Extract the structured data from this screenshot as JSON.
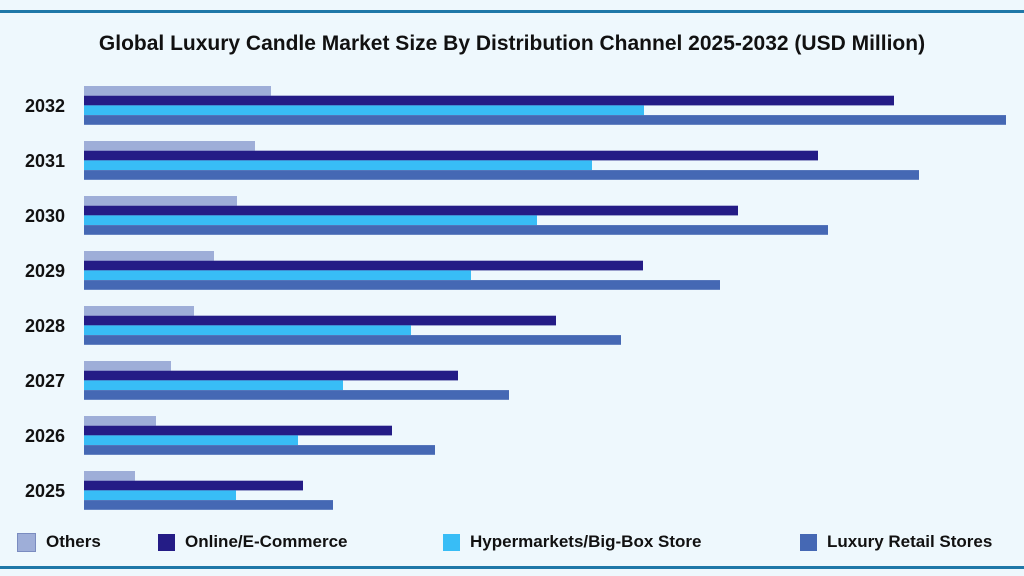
{
  "chart_data": {
    "type": "bar",
    "orientation": "horizontal",
    "title": "Global Luxury Candle Market Size By Distribution Channel 2025-2032 (USD Million)",
    "categories": [
      "2032",
      "2031",
      "2030",
      "2029",
      "2028",
      "2027",
      "2026",
      "2025"
    ],
    "series": [
      {
        "name": "Others",
        "color": "#9eaed8",
        "values": [
          187,
          171,
          153,
          130,
          110,
          87,
          72,
          51
        ]
      },
      {
        "name": "Online/E-Commerce",
        "color": "#241c86",
        "values": [
          810,
          734,
          654,
          559,
          472,
          374,
          308,
          219
        ]
      },
      {
        "name": "Hypermarkets/Big-Box Store",
        "color": "#38bdf6",
        "values": [
          560,
          508,
          453,
          387,
          327,
          259,
          214,
          152
        ]
      },
      {
        "name": "Luxury Retail Stores",
        "color": "#4568b4",
        "values": [
          922,
          835,
          744,
          636,
          537,
          425,
          351,
          249
        ]
      }
    ],
    "xaxis_visible": false,
    "grid": false,
    "legend_position": "bottom"
  }
}
